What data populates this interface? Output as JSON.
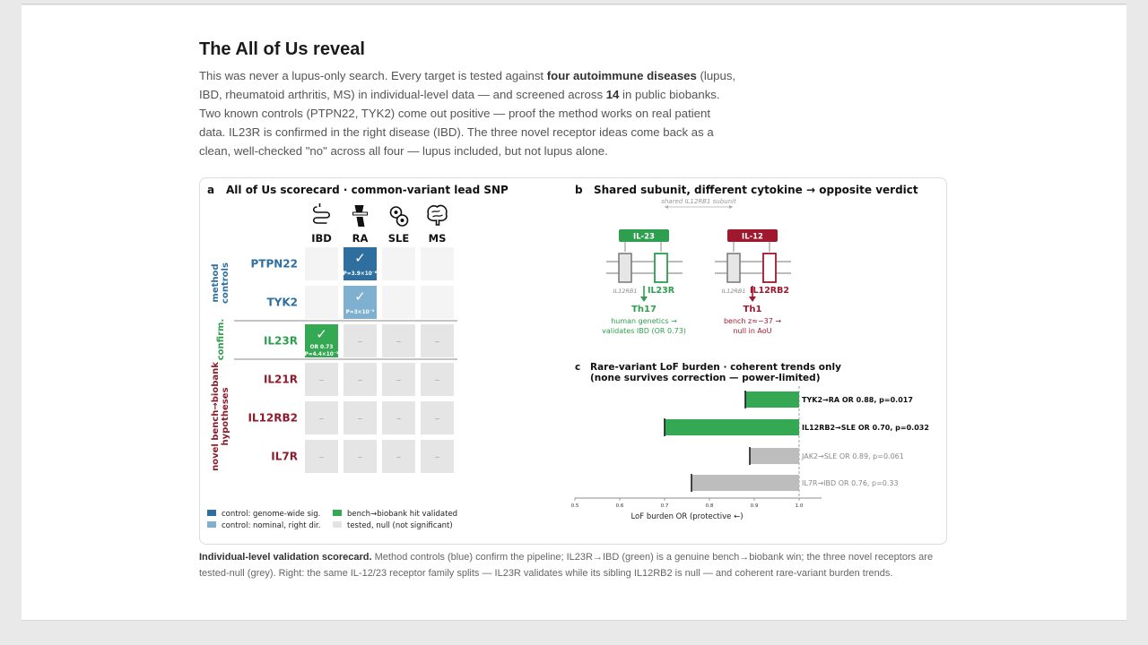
{
  "section": {
    "title": "The All of Us reveal",
    "intro": [
      {
        "t": "This was never a lupus-only search. Every target is tested against ",
        "b": false
      },
      {
        "t": "four autoimmune diseases",
        "b": true
      },
      {
        "t": " (lupus, IBD, rheumatoid arthritis, MS) in individual-level data — and screened across ",
        "b": false
      },
      {
        "t": "14",
        "b": true
      },
      {
        "t": " in public biobanks. Two known controls (PTPN22, TYK2) come out positive — proof the method works on real patient data. IL23R is confirmed in the right disease (IBD). The three novel receptor ideas come back as a clean, well-checked \"no\" across all four — lupus included, but not lupus alone.",
        "b": false
      }
    ],
    "caption_bold": "Individual-level validation scorecard.",
    "caption_rest": " Method controls (blue) confirm the pipeline; IL23R→IBD (green) is a genuine bench→biobank win; the three novel receptors are tested-null (grey). Right: the same IL-12/23 receptor family splits — IL23R validates while its sibling IL12RB2 is null — and coherent rare-variant burden trends."
  },
  "panel_a": {
    "letter": "a",
    "title": "All of Us scorecard · common-variant lead SNP",
    "diseases": [
      {
        "label": "IBD",
        "icon": "intestine-icon"
      },
      {
        "label": "RA",
        "icon": "joint-icon"
      },
      {
        "label": "SLE",
        "icon": "blood-cells-icon"
      },
      {
        "label": "MS",
        "icon": "brain-icon"
      }
    ],
    "groups": [
      {
        "label": [
          "method",
          "controls"
        ],
        "color": "#2f6f9f"
      },
      {
        "label": [
          "confirm."
        ],
        "color": "#2e9e4f"
      },
      {
        "label": [
          "novel bench→biobank",
          "hypotheses"
        ],
        "color": "#8b1d2c"
      }
    ],
    "rows": [
      {
        "gene": "PTPN22",
        "color": "#2f6f9f",
        "cells": [
          {
            "s": "empty"
          },
          {
            "s": "strong",
            "check": "✓",
            "sub": [
              "P=3.9×10⁻⁸"
            ]
          },
          {
            "s": "empty"
          },
          {
            "s": "empty"
          }
        ]
      },
      {
        "gene": "TYK2",
        "color": "#2f6f9f",
        "cells": [
          {
            "s": "empty"
          },
          {
            "s": "nominal",
            "check": "✓",
            "sub": [
              "P=3×10⁻³"
            ]
          },
          {
            "s": "empty"
          },
          {
            "s": "empty"
          }
        ]
      },
      {
        "gene": "IL23R",
        "color": "#2e9e4f",
        "cells": [
          {
            "s": "hit",
            "check": "✓",
            "sub": [
              "OR 0.73",
              "P=4.4×10⁻³"
            ]
          },
          {
            "s": "null",
            "dash": "–"
          },
          {
            "s": "null",
            "dash": "–"
          },
          {
            "s": "null",
            "dash": "–"
          }
        ]
      },
      {
        "gene": "IL21R",
        "color": "#8b1d2c",
        "cells": [
          {
            "s": "null",
            "dash": "–"
          },
          {
            "s": "null",
            "dash": "–"
          },
          {
            "s": "null",
            "dash": "–"
          },
          {
            "s": "null",
            "dash": "–"
          }
        ]
      },
      {
        "gene": "IL12RB2",
        "color": "#8b1d2c",
        "cells": [
          {
            "s": "null",
            "dash": "–"
          },
          {
            "s": "null",
            "dash": "–"
          },
          {
            "s": "null",
            "dash": "–"
          },
          {
            "s": "null",
            "dash": "–"
          }
        ]
      },
      {
        "gene": "IL7R",
        "color": "#8b1d2c",
        "cells": [
          {
            "s": "null",
            "dash": "–"
          },
          {
            "s": "null",
            "dash": "–"
          },
          {
            "s": "null",
            "dash": "–"
          },
          {
            "s": "null",
            "dash": "–"
          }
        ]
      }
    ],
    "legend": [
      {
        "label": "control: genome-wide sig.",
        "color": "#2f6f9f"
      },
      {
        "label": "bench→biobank hit validated",
        "color": "#35a853"
      },
      {
        "label": "control: nominal, right dir.",
        "color": "#7fb0d0"
      },
      {
        "label": "tested, null (not significant)",
        "color": "#e3e3e3"
      }
    ],
    "colors": {
      "strong": "#2f6f9f",
      "nominal": "#7fb0d0",
      "hit": "#35a853",
      "null": "#e5e5e5",
      "empty": "#f4f4f4"
    }
  },
  "panel_b": {
    "letter": "b",
    "title": "Shared subunit, different cytokine → opposite verdict",
    "shared_label": "shared IL12RB1 subunit",
    "left": {
      "cytokine": "IL-23",
      "subunit": "IL12RB1",
      "partner": "IL23R",
      "cell": "Th17",
      "note": [
        "human genetics →",
        "validates IBD (OR 0.73)"
      ],
      "color": "#2e9e4f"
    },
    "right": {
      "cytokine": "IL-12",
      "subunit": "IL12RB1",
      "partner": "IL12RB2",
      "cell": "Th1",
      "note": [
        "bench z≈−37 →",
        "null in AoU"
      ],
      "color": "#a0182e"
    }
  },
  "panel_c": {
    "letter": "c",
    "title": [
      "Rare-variant LoF burden · coherent trends only",
      "(none survives correction — power-limited)"
    ],
    "xlabel": "LoF burden OR (protective ←)",
    "chart_data": {
      "type": "bar",
      "orientation": "horizontal",
      "xlabel": "LoF burden OR (protective ←)",
      "xlim": [
        0.5,
        1.0
      ],
      "xticks": [
        "0.5",
        "0.6",
        "0.7",
        "0.8",
        "0.9",
        "1.0"
      ],
      "reference": 1.0,
      "bars": [
        {
          "label": "TYK2→RA  OR 0.88, p=0.017",
          "value": 0.88,
          "sig": true
        },
        {
          "label": "IL12RB2→SLE  OR 0.70, p=0.032",
          "value": 0.7,
          "sig": true
        },
        {
          "label": "JAK2→SLE  OR 0.89, p=0.061",
          "value": 0.89,
          "sig": false
        },
        {
          "label": "IL7R→IBD  OR 0.76, p=0.33",
          "value": 0.76,
          "sig": false
        }
      ],
      "colors": {
        "sig": "#35a853",
        "nonsig": "#bdbdbd"
      }
    }
  }
}
